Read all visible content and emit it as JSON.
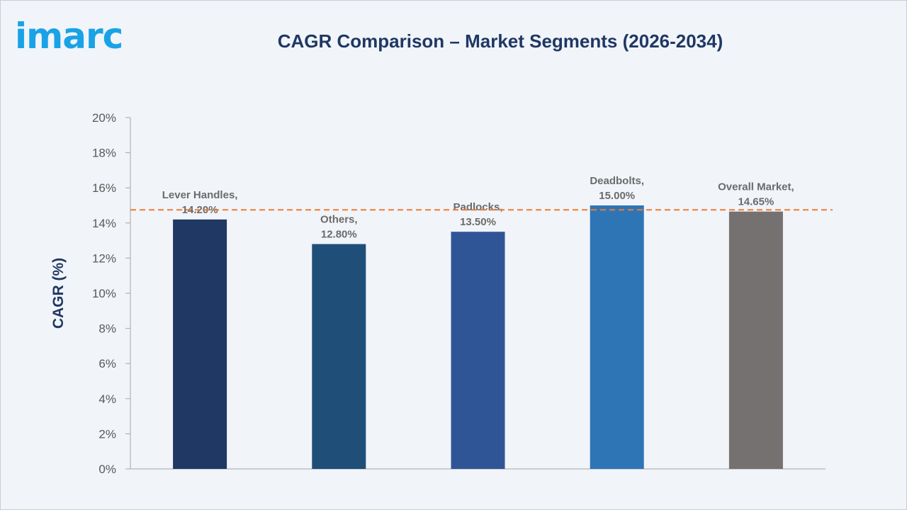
{
  "brand": {
    "logo_text": "imarc",
    "color": "#19a3e6"
  },
  "chart_data": {
    "type": "bar",
    "title": "CAGR Comparison – Market Segments (2026-2034)",
    "xlabel": "",
    "ylabel": "CAGR (%)",
    "ylim": [
      0,
      20
    ],
    "ytick_step": 2,
    "ytick_labels": [
      "0%",
      "2%",
      "4%",
      "6%",
      "8%",
      "10%",
      "12%",
      "14%",
      "16%",
      "18%",
      "20%"
    ],
    "grid": false,
    "legend": "none",
    "categories": [
      "Lever Handles",
      "Others",
      "Padlocks",
      "Deadbolts",
      "Overall Market"
    ],
    "values": [
      14.2,
      12.8,
      13.5,
      15.0,
      14.65
    ],
    "data_labels": [
      [
        "Lever Handles,",
        "14.20%"
      ],
      [
        "Others,",
        "12.80%"
      ],
      [
        "Padlocks,",
        "13.50%"
      ],
      [
        "Deadbolts,",
        "15.00%"
      ],
      [
        "Overall Market,",
        "14.65%"
      ]
    ],
    "colors": [
      "#203864",
      "#1f4e79",
      "#2f5597",
      "#2e75b6",
      "#767171"
    ],
    "reference_line": {
      "value": 14.75,
      "style": "dashed",
      "color": "#ed7d31"
    }
  }
}
